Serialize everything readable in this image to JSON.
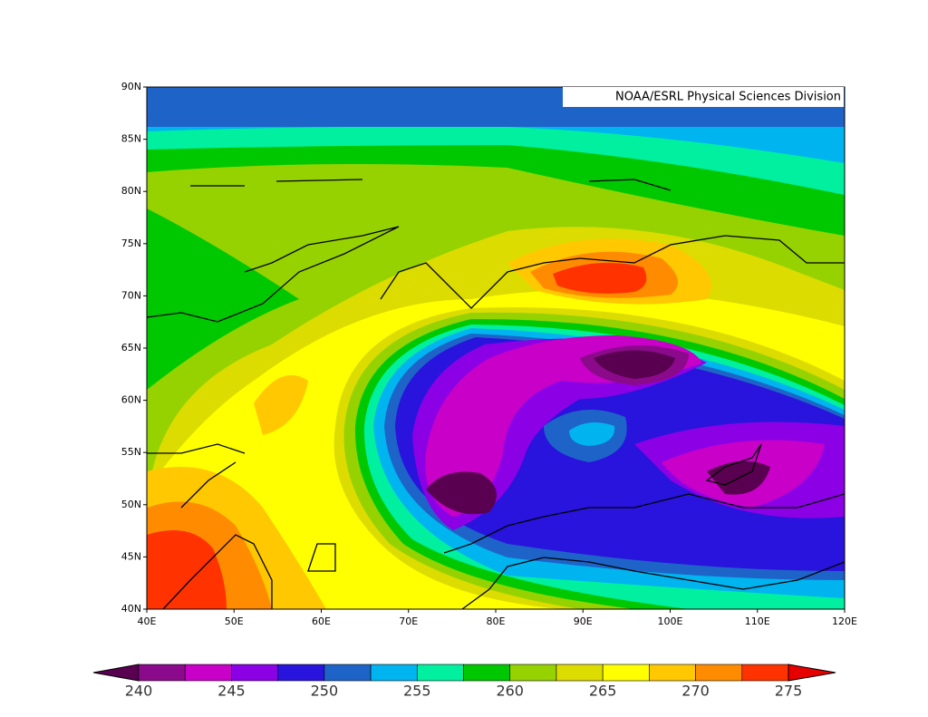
{
  "credit": "NOAA/ESRL Physical Sciences Division",
  "map": {
    "lat_labels": [
      "90N",
      "85N",
      "80N",
      "75N",
      "70N",
      "65N",
      "60N",
      "55N",
      "50N",
      "45N",
      "40N"
    ],
    "lon_labels": [
      "40E",
      "50E",
      "60E",
      "70E",
      "80E",
      "90E",
      "100E",
      "110E",
      "120E"
    ]
  },
  "colorbar": {
    "ticks": [
      240,
      245,
      250,
      255,
      260,
      265,
      270,
      275
    ],
    "below_color": "#5a0050",
    "above_color": "#e60000",
    "colors": [
      "#8b0a8b",
      "#c800c8",
      "#8c00e6",
      "#2814dc",
      "#1e64c8",
      "#00b4f0",
      "#00f0a0",
      "#00c800",
      "#96d200",
      "#dcdc00",
      "#ffff00",
      "#ffc800",
      "#ff8c00",
      "#ff3200"
    ]
  }
}
